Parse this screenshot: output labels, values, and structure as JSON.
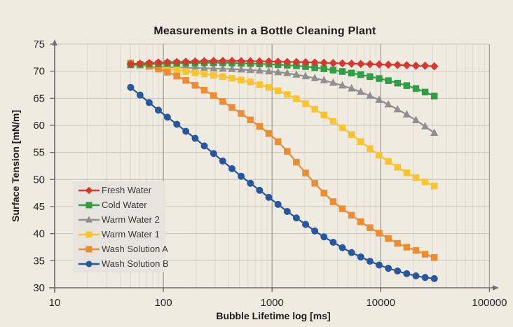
{
  "chart_data": {
    "type": "line",
    "title": "Measurements in a Bottle Cleaning Plant",
    "xlabel": "Bubble Lifetime log [ms]",
    "ylabel": "Surface Tension [mN/m]",
    "x_scale": "log",
    "xlim": [
      10,
      100000
    ],
    "ylim": [
      30,
      75
    ],
    "x_ticks": [
      10,
      100,
      1000,
      10000,
      100000
    ],
    "x_tick_labels": [
      "10",
      "100",
      "1000",
      "10000",
      "100000"
    ],
    "y_ticks": [
      30,
      35,
      40,
      45,
      50,
      55,
      60,
      65,
      70,
      75
    ],
    "grid": true,
    "legend_position": "middle-left",
    "x": [
      50,
      61,
      74,
      90,
      109,
      133,
      161,
      196,
      238,
      290,
      352,
      428,
      520,
      632,
      768,
      933,
      1134,
      1378,
      1674,
      2034,
      2472,
      3003,
      3649,
      4434,
      5388,
      6546,
      7953,
      9663,
      11741,
      14265,
      17332,
      21058,
      25586,
      31087
    ],
    "series": [
      {
        "name": "Fresh Water",
        "color": "#d6382e",
        "marker": "diamond",
        "values": [
          71.3,
          71.4,
          71.5,
          71.6,
          71.65,
          71.7,
          71.75,
          71.8,
          71.85,
          71.9,
          71.9,
          71.9,
          71.85,
          71.85,
          71.8,
          71.8,
          71.75,
          71.7,
          71.7,
          71.65,
          71.6,
          71.55,
          71.5,
          71.45,
          71.4,
          71.35,
          71.3,
          71.25,
          71.2,
          71.15,
          71.1,
          71.0,
          71.0,
          70.9
        ]
      },
      {
        "name": "Cold Water",
        "color": "#2f9e44",
        "marker": "square",
        "values": [
          71.2,
          71.25,
          71.3,
          71.35,
          71.4,
          71.45,
          71.5,
          71.5,
          71.55,
          71.55,
          71.55,
          71.5,
          71.45,
          71.4,
          71.35,
          71.3,
          71.2,
          71.1,
          71.0,
          70.85,
          70.65,
          70.45,
          70.2,
          69.95,
          69.65,
          69.35,
          69.0,
          68.65,
          68.25,
          67.8,
          67.35,
          66.8,
          66.15,
          65.4
        ]
      },
      {
        "name": "Warm Water 2",
        "color": "#8f8f8f",
        "marker": "triangle",
        "values": [
          71.1,
          71.0,
          70.9,
          70.8,
          70.75,
          70.7,
          70.65,
          70.6,
          70.55,
          70.5,
          70.45,
          70.4,
          70.3,
          70.2,
          70.1,
          69.95,
          69.8,
          69.6,
          69.35,
          69.05,
          68.7,
          68.3,
          67.85,
          67.35,
          66.8,
          66.15,
          65.45,
          64.7,
          63.85,
          62.95,
          62.0,
          60.95,
          59.8,
          58.6
        ]
      },
      {
        "name": "Warm Water 1",
        "color": "#f9c42e",
        "marker": "square",
        "values": [
          71.3,
          71.1,
          70.9,
          70.7,
          70.45,
          70.2,
          69.95,
          69.7,
          69.5,
          69.25,
          69.0,
          68.7,
          68.35,
          68.0,
          67.5,
          67.0,
          66.4,
          65.7,
          64.9,
          64.0,
          63.0,
          61.9,
          60.75,
          59.55,
          58.3,
          57.0,
          55.7,
          54.5,
          53.35,
          52.25,
          51.25,
          50.35,
          49.55,
          48.8
        ]
      },
      {
        "name": "Wash Solution A",
        "color": "#ec8c33",
        "marker": "square",
        "values": [
          71.5,
          71.2,
          70.9,
          70.4,
          69.8,
          69.1,
          68.3,
          67.4,
          66.5,
          65.5,
          64.4,
          63.3,
          62.2,
          61.0,
          59.8,
          58.5,
          57.0,
          55.2,
          53.2,
          51.2,
          49.3,
          47.5,
          45.9,
          44.6,
          43.4,
          42.2,
          41.1,
          40.1,
          39.1,
          38.2,
          37.5,
          36.9,
          36.2,
          35.6
        ]
      },
      {
        "name": "Wash Solution B",
        "color": "#27589f",
        "marker": "circle",
        "values": [
          67.0,
          65.6,
          64.2,
          62.8,
          61.5,
          60.2,
          58.9,
          57.6,
          56.2,
          54.8,
          53.4,
          52.0,
          50.6,
          49.3,
          48.0,
          46.7,
          45.4,
          44.1,
          42.9,
          41.7,
          40.5,
          39.4,
          38.4,
          37.4,
          36.5,
          35.7,
          34.9,
          34.2,
          33.6,
          33.1,
          32.6,
          32.2,
          31.9,
          31.7
        ]
      }
    ]
  },
  "colors": {
    "background": "#f0ebe1",
    "legend_background": "#e7e4dd",
    "grid_minor": "#ddd8cf",
    "grid_major": "#a8a49c",
    "grid_horizontal": "#c9c5bc",
    "axis": "#6e6e6e",
    "tick_text": "#262626",
    "title_text": "#1c1c1c"
  }
}
